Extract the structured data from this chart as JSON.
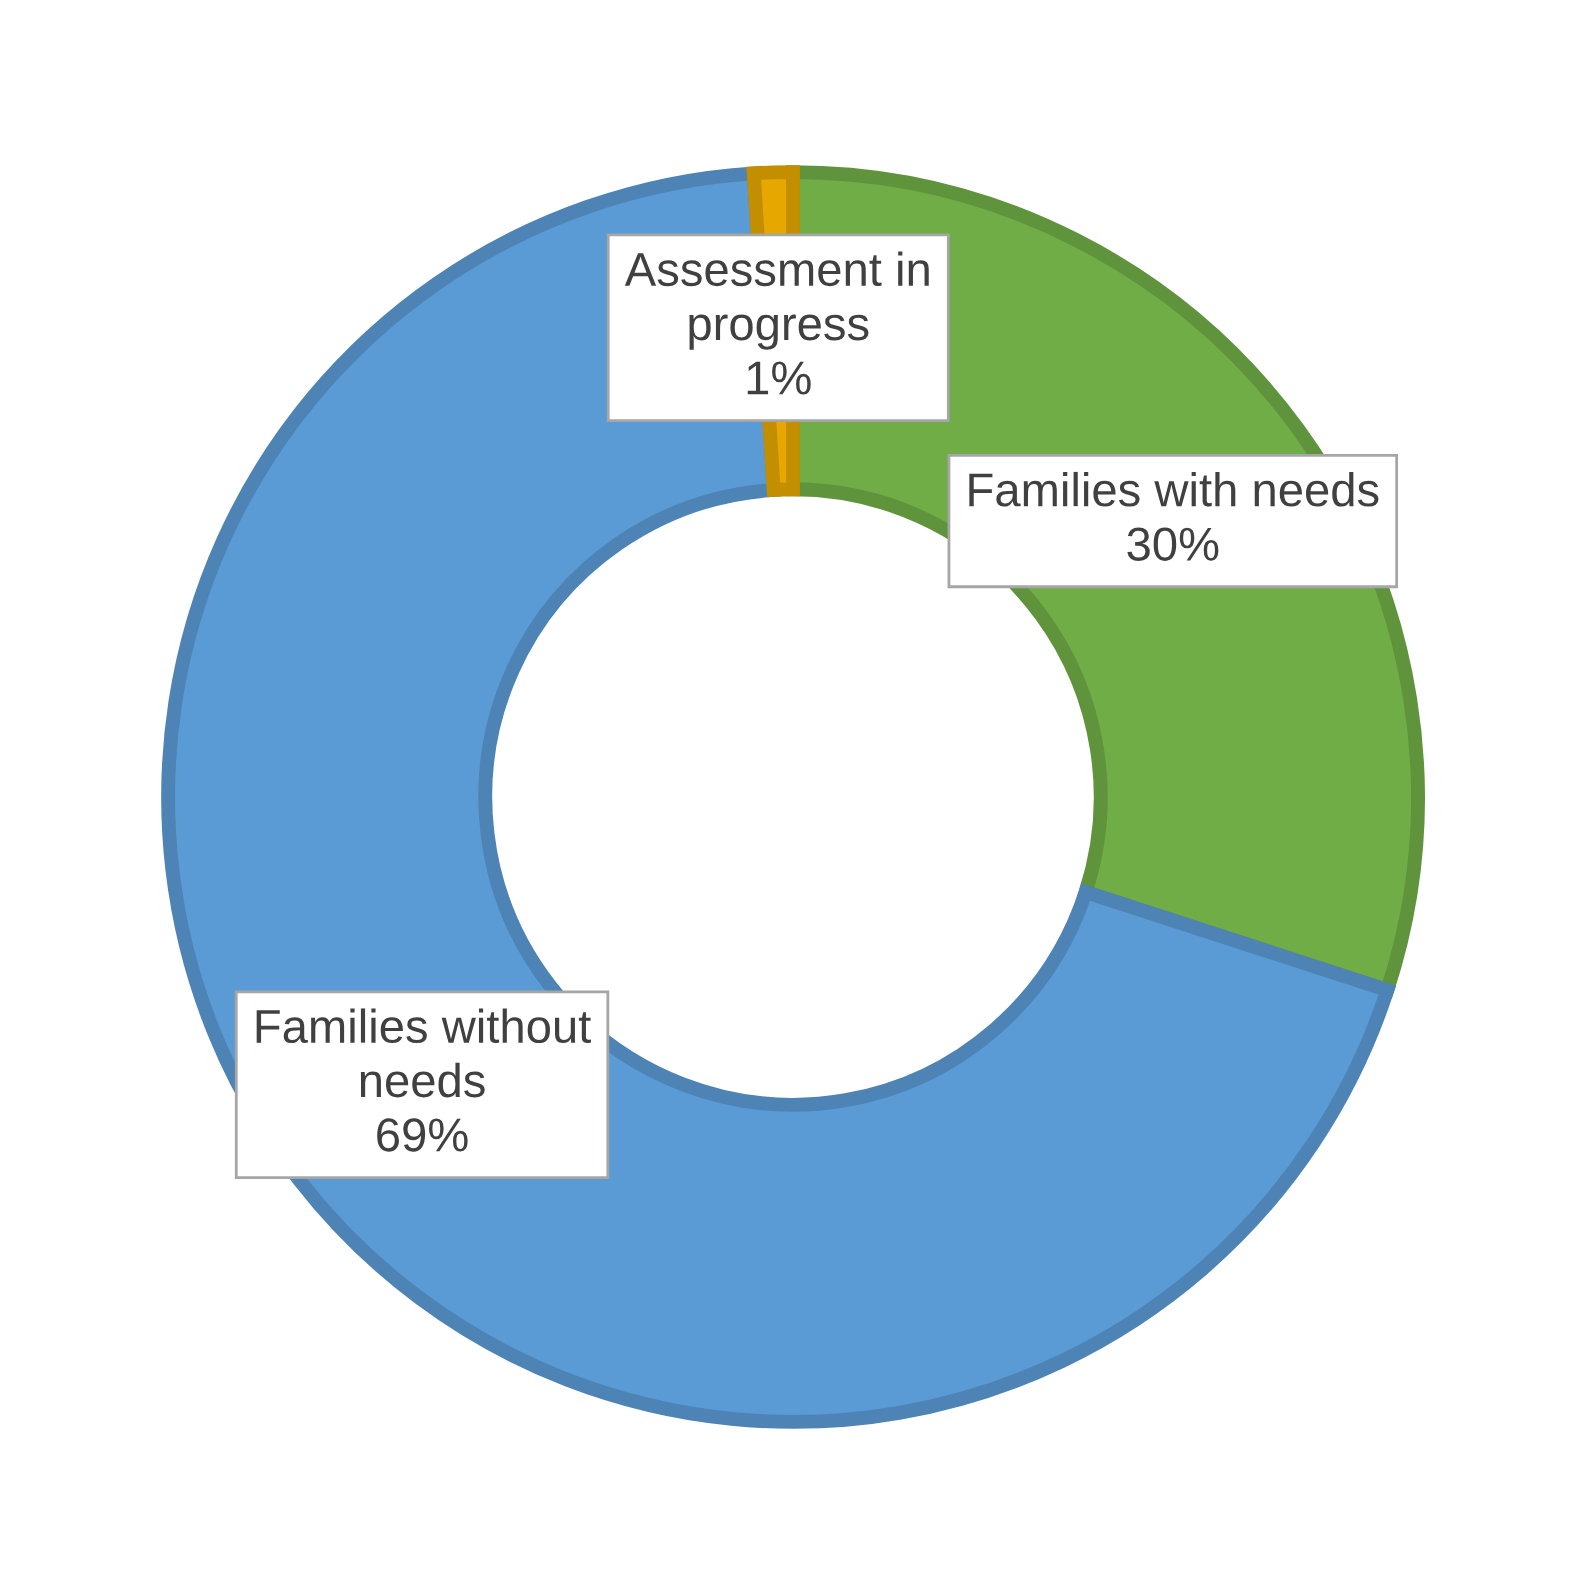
{
  "chart_data": {
    "type": "donut",
    "categories": [
      "Families with needs",
      "Families without needs",
      "Assessment in progress"
    ],
    "values": [
      30,
      69,
      1
    ],
    "colors": [
      "#70ad47",
      "#5b9bd5",
      "#e6a800"
    ],
    "value_labels": [
      "30%",
      "69%",
      "1%"
    ],
    "legend": false
  }
}
